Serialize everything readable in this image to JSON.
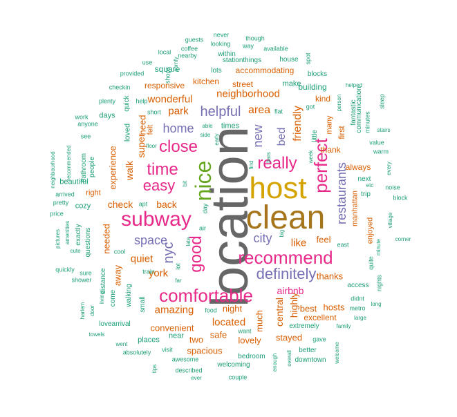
{
  "palette": {
    "gray": "#666666",
    "gold": "#d4a300",
    "olive": "#a6761d",
    "magenta": "#e7298a",
    "purple": "#7570b3",
    "green": "#66a61e",
    "orange": "#d95f02",
    "teal": "#1b9e77"
  },
  "words": [
    {
      "text": "location",
      "color": "gray",
      "size": 76,
      "rot": 1
    },
    {
      "text": "host",
      "color": "gold",
      "size": 44,
      "rot": 0
    },
    {
      "text": "clean",
      "color": "olive",
      "size": 48,
      "rot": 0
    },
    {
      "text": "nice",
      "color": "green",
      "size": 32,
      "rot": 1
    },
    {
      "text": "subway",
      "color": "magenta",
      "size": 30,
      "rot": 0
    },
    {
      "text": "comfortable",
      "color": "magenta",
      "size": 26,
      "rot": 0
    },
    {
      "text": "recommend",
      "color": "magenta",
      "size": 26,
      "rot": 0
    },
    {
      "text": "perfect",
      "color": "magenta",
      "size": 26,
      "rot": 1
    },
    {
      "text": "close",
      "color": "magenta",
      "size": 24,
      "rot": 0
    },
    {
      "text": "time",
      "color": "magenta",
      "size": 24,
      "rot": 0
    },
    {
      "text": "easy",
      "color": "magenta",
      "size": 22,
      "rot": 0
    },
    {
      "text": "really",
      "color": "magenta",
      "size": 24,
      "rot": 0
    },
    {
      "text": "good",
      "color": "magenta",
      "size": 24,
      "rot": 1
    },
    {
      "text": "definitely",
      "color": "purple",
      "size": 22,
      "rot": 0
    },
    {
      "text": "helpful",
      "color": "purple",
      "size": 20,
      "rot": 0
    },
    {
      "text": "home",
      "color": "purple",
      "size": 18,
      "rot": 0
    },
    {
      "text": "space",
      "color": "purple",
      "size": 18,
      "rot": 0
    },
    {
      "text": "nyc",
      "color": "purple",
      "size": 20,
      "rot": 1
    },
    {
      "text": "city",
      "color": "purple",
      "size": 18,
      "rot": 0
    },
    {
      "text": "new",
      "color": "purple",
      "size": 18,
      "rot": 1
    },
    {
      "text": "bed",
      "color": "purple",
      "size": 16,
      "rot": 1
    },
    {
      "text": "restaurants",
      "color": "purple",
      "size": 18,
      "rot": 1
    },
    {
      "text": "area",
      "color": "orange",
      "size": 16,
      "rot": 0
    },
    {
      "text": "friendly",
      "color": "orange",
      "size": 16,
      "rot": 1
    },
    {
      "text": "neighborhood",
      "color": "orange",
      "size": 15,
      "rot": 0
    },
    {
      "text": "wonderful",
      "color": "orange",
      "size": 15,
      "rot": 0
    },
    {
      "text": "park",
      "color": "orange",
      "size": 15,
      "rot": 0
    },
    {
      "text": "super",
      "color": "orange",
      "size": 14,
      "rot": 1
    },
    {
      "text": "need",
      "color": "orange",
      "size": 13,
      "rot": 1
    },
    {
      "text": "walk",
      "color": "orange",
      "size": 14,
      "rot": 1
    },
    {
      "text": "experience",
      "color": "orange",
      "size": 13,
      "rot": 1
    },
    {
      "text": "check",
      "color": "orange",
      "size": 14,
      "rot": 0
    },
    {
      "text": "back",
      "color": "orange",
      "size": 14,
      "rot": 0
    },
    {
      "text": "quiet",
      "color": "orange",
      "size": 15,
      "rot": 0
    },
    {
      "text": "york",
      "color": "orange",
      "size": 15,
      "rot": 0
    },
    {
      "text": "amazing",
      "color": "orange",
      "size": 15,
      "rot": 0
    },
    {
      "text": "like",
      "color": "orange",
      "size": 15,
      "rot": 0
    },
    {
      "text": "located",
      "color": "orange",
      "size": 15,
      "rot": 0
    },
    {
      "text": "central",
      "color": "orange",
      "size": 14,
      "rot": 1
    },
    {
      "text": "highly",
      "color": "orange",
      "size": 14,
      "rot": 1
    },
    {
      "text": "airbnb",
      "color": "magenta",
      "size": 14,
      "rot": 0
    },
    {
      "text": "night",
      "color": "orange",
      "size": 13,
      "rot": 0
    },
    {
      "text": "needed",
      "color": "orange",
      "size": 13,
      "rot": 1
    },
    {
      "text": "away",
      "color": "orange",
      "size": 13,
      "rot": 1
    },
    {
      "text": "feel",
      "color": "orange",
      "size": 13,
      "rot": 0
    },
    {
      "text": "thanks",
      "color": "orange",
      "size": 13,
      "rot": 0
    },
    {
      "text": "safe",
      "color": "orange",
      "size": 13,
      "rot": 0
    },
    {
      "text": "convenient",
      "color": "orange",
      "size": 13,
      "rot": 0
    },
    {
      "text": "stayed",
      "color": "orange",
      "size": 13,
      "rot": 0
    },
    {
      "text": "spacious",
      "color": "orange",
      "size": 13,
      "rot": 0
    },
    {
      "text": "two",
      "color": "orange",
      "size": 13,
      "rot": 0
    },
    {
      "text": "lovely",
      "color": "orange",
      "size": 13,
      "rot": 0
    },
    {
      "text": "much",
      "color": "orange",
      "size": 13,
      "rot": 1
    },
    {
      "text": "best",
      "color": "orange",
      "size": 13,
      "rot": 0
    },
    {
      "text": "hosts",
      "color": "orange",
      "size": 13,
      "rot": 0
    },
    {
      "text": "excellent",
      "color": "orange",
      "size": 12,
      "rot": 0
    },
    {
      "text": "first",
      "color": "orange",
      "size": 12,
      "rot": 1
    },
    {
      "text": "thank",
      "color": "orange",
      "size": 12,
      "rot": 0
    },
    {
      "text": "always",
      "color": "orange",
      "size": 12,
      "rot": 0
    },
    {
      "text": "manhattan",
      "color": "orange",
      "size": 11,
      "rot": 1
    },
    {
      "text": "enjoyed",
      "color": "orange",
      "size": 11,
      "rot": 1
    },
    {
      "text": "many",
      "color": "orange",
      "size": 11,
      "rot": 1
    },
    {
      "text": "kind",
      "color": "orange",
      "size": 12,
      "rot": 0
    },
    {
      "text": "building",
      "color": "teal",
      "size": 12,
      "rot": 0
    },
    {
      "text": "make",
      "color": "teal",
      "size": 11,
      "rot": 0
    },
    {
      "text": "street",
      "color": "orange",
      "size": 12,
      "rot": 0
    },
    {
      "text": "kitchen",
      "color": "orange",
      "size": 12,
      "rot": 0
    },
    {
      "text": "accommodating",
      "color": "orange",
      "size": 12,
      "rot": 0
    },
    {
      "text": "responsive",
      "color": "orange",
      "size": 12,
      "rot": 0
    },
    {
      "text": "square",
      "color": "teal",
      "size": 12,
      "rot": 0
    },
    {
      "text": "times",
      "color": "teal",
      "size": 11,
      "rot": 0
    },
    {
      "text": "loved",
      "color": "teal",
      "size": 11,
      "rot": 1
    },
    {
      "text": "quick",
      "color": "teal",
      "size": 10,
      "rot": 1
    },
    {
      "text": "felt",
      "color": "orange",
      "size": 11,
      "rot": 1
    },
    {
      "text": "days",
      "color": "teal",
      "size": 11,
      "rot": 0
    },
    {
      "text": "bathroom",
      "color": "teal",
      "size": 10,
      "rot": 1
    },
    {
      "text": "right",
      "color": "orange",
      "size": 11,
      "rot": 0
    },
    {
      "text": "beautiful",
      "color": "teal",
      "size": 11,
      "rot": 0
    },
    {
      "text": "people",
      "color": "teal",
      "size": 10,
      "rot": 1
    },
    {
      "text": "cozy",
      "color": "teal",
      "size": 11,
      "rot": 0
    },
    {
      "text": "exactly",
      "color": "teal",
      "size": 10,
      "rot": 1
    },
    {
      "text": "questions",
      "color": "teal",
      "size": 10,
      "rot": 1
    },
    {
      "text": "distance",
      "color": "teal",
      "size": 10,
      "rot": 1
    },
    {
      "text": "walking",
      "color": "teal",
      "size": 10,
      "rot": 1
    },
    {
      "text": "come",
      "color": "teal",
      "size": 10,
      "rot": 1
    },
    {
      "text": "small",
      "color": "teal",
      "size": 10,
      "rot": 1
    },
    {
      "text": "places",
      "color": "teal",
      "size": 11,
      "rot": 0
    },
    {
      "text": "near",
      "color": "teal",
      "size": 11,
      "rot": 0
    },
    {
      "text": "welcoming",
      "color": "teal",
      "size": 10,
      "rot": 0
    },
    {
      "text": "bedroom",
      "color": "teal",
      "size": 10,
      "rot": 0
    },
    {
      "text": "extremely",
      "color": "teal",
      "size": 10,
      "rot": 0
    },
    {
      "text": "better",
      "color": "teal",
      "size": 10,
      "rot": 0
    },
    {
      "text": "downtown",
      "color": "teal",
      "size": 10,
      "rot": 0
    },
    {
      "text": "communication",
      "color": "teal",
      "size": 10,
      "rot": 1
    },
    {
      "text": "fantastic",
      "color": "teal",
      "size": 10,
      "rot": 1
    },
    {
      "text": "minutes",
      "color": "teal",
      "size": 9,
      "rot": 1
    },
    {
      "text": "little",
      "color": "teal",
      "size": 10,
      "rot": 1
    },
    {
      "text": "stationthings",
      "color": "teal",
      "size": 10,
      "rot": 0
    },
    {
      "text": "lots",
      "color": "teal",
      "size": 10,
      "rot": 0
    },
    {
      "text": "blocks",
      "color": "teal",
      "size": 10,
      "rot": 0
    },
    {
      "text": "house",
      "color": "teal",
      "size": 10,
      "rot": 0
    },
    {
      "text": "available",
      "color": "teal",
      "size": 9,
      "rot": 0
    },
    {
      "text": "within",
      "color": "teal",
      "size": 10,
      "rot": 0
    },
    {
      "text": "looking",
      "color": "teal",
      "size": 9,
      "rot": 0
    },
    {
      "text": "coffee",
      "color": "teal",
      "size": 9,
      "rot": 0
    },
    {
      "text": "local",
      "color": "teal",
      "size": 9,
      "rot": 0
    },
    {
      "text": "guests",
      "color": "teal",
      "size": 9,
      "rot": 0
    },
    {
      "text": "never",
      "color": "teal",
      "size": 9,
      "rot": 0
    },
    {
      "text": "though",
      "color": "teal",
      "size": 9,
      "rot": 0
    },
    {
      "text": "way",
      "color": "teal",
      "size": 9,
      "rot": 0
    },
    {
      "text": "nearby",
      "color": "teal",
      "size": 9,
      "rot": 0
    },
    {
      "text": "shops",
      "color": "teal",
      "size": 9,
      "rot": 1
    },
    {
      "text": "use",
      "color": "teal",
      "size": 9,
      "rot": 0
    },
    {
      "text": "provided",
      "color": "teal",
      "size": 9,
      "rot": 0
    },
    {
      "text": "checkin",
      "color": "teal",
      "size": 9,
      "rot": 0
    },
    {
      "text": "help",
      "color": "teal",
      "size": 9,
      "rot": 0
    },
    {
      "text": "plenty",
      "color": "teal",
      "size": 9,
      "rot": 0
    },
    {
      "text": "short",
      "color": "teal",
      "size": 9,
      "rot": 0
    },
    {
      "text": "work",
      "color": "teal",
      "size": 9,
      "rot": 0
    },
    {
      "text": "anyone",
      "color": "teal",
      "size": 9,
      "rot": 0
    },
    {
      "text": "see",
      "color": "teal",
      "size": 9,
      "rot": 0
    },
    {
      "text": "floor",
      "color": "teal",
      "size": 8,
      "rot": 0
    },
    {
      "text": "comfy",
      "color": "teal",
      "size": 8,
      "rot": 1
    },
    {
      "text": "spot",
      "color": "teal",
      "size": 9,
      "rot": 1
    },
    {
      "text": "helped",
      "color": "teal",
      "size": 8,
      "rot": 0
    },
    {
      "text": "person",
      "color": "teal",
      "size": 8,
      "rot": 1
    },
    {
      "text": "sleep",
      "color": "teal",
      "size": 9,
      "rot": 1
    },
    {
      "text": "stairs",
      "color": "teal",
      "size": 8,
      "rot": 0
    },
    {
      "text": "value",
      "color": "teal",
      "size": 9,
      "rot": 0
    },
    {
      "text": "warm",
      "color": "teal",
      "size": 9,
      "rot": 0
    },
    {
      "text": "every",
      "color": "teal",
      "size": 8,
      "rot": 1
    },
    {
      "text": "noise",
      "color": "teal",
      "size": 9,
      "rot": 0
    },
    {
      "text": "block",
      "color": "teal",
      "size": 9,
      "rot": 0
    },
    {
      "text": "next",
      "color": "teal",
      "size": 10,
      "rot": 0
    },
    {
      "text": "etc",
      "color": "teal",
      "size": 8,
      "rot": 0
    },
    {
      "text": "trip",
      "color": "teal",
      "size": 10,
      "rot": 0
    },
    {
      "text": "village",
      "color": "teal",
      "size": 8,
      "rot": 1
    },
    {
      "text": "corner",
      "color": "teal",
      "size": 8,
      "rot": 0
    },
    {
      "text": "minute",
      "color": "teal",
      "size": 8,
      "rot": 1
    },
    {
      "text": "quite",
      "color": "teal",
      "size": 9,
      "rot": 1
    },
    {
      "text": "east",
      "color": "teal",
      "size": 9,
      "rot": 0
    },
    {
      "text": "access",
      "color": "teal",
      "size": 10,
      "rot": 0
    },
    {
      "text": "nights",
      "color": "teal",
      "size": 9,
      "rot": 1
    },
    {
      "text": "didnt",
      "color": "teal",
      "size": 9,
      "rot": 0
    },
    {
      "text": "metro",
      "color": "teal",
      "size": 9,
      "rot": 0
    },
    {
      "text": "long",
      "color": "teal",
      "size": 8,
      "rot": 0
    },
    {
      "text": "large",
      "color": "teal",
      "size": 8,
      "rot": 0
    },
    {
      "text": "family",
      "color": "teal",
      "size": 8,
      "rot": 0
    },
    {
      "text": "gave",
      "color": "teal",
      "size": 9,
      "rot": 0
    },
    {
      "text": "welcome",
      "color": "teal",
      "size": 8,
      "rot": 1
    },
    {
      "text": "enough",
      "color": "teal",
      "size": 8,
      "rot": 1
    },
    {
      "text": "overall",
      "color": "teal",
      "size": 8,
      "rot": 1
    },
    {
      "text": "couple",
      "color": "teal",
      "size": 9,
      "rot": 0
    },
    {
      "text": "described",
      "color": "teal",
      "size": 9,
      "rot": 0
    },
    {
      "text": "ever",
      "color": "teal",
      "size": 8,
      "rot": 0
    },
    {
      "text": "awesome",
      "color": "teal",
      "size": 9,
      "rot": 0
    },
    {
      "text": "visit",
      "color": "teal",
      "size": 9,
      "rot": 0
    },
    {
      "text": "tips",
      "color": "teal",
      "size": 8,
      "rot": 1
    },
    {
      "text": "absolutely",
      "color": "teal",
      "size": 9,
      "rot": 0
    },
    {
      "text": "went",
      "color": "teal",
      "size": 8,
      "rot": 0
    },
    {
      "text": "towels",
      "color": "teal",
      "size": 8,
      "rot": 0
    },
    {
      "text": "lovearrival",
      "color": "teal",
      "size": 10,
      "rot": 0
    },
    {
      "text": "harlem",
      "color": "teal",
      "size": 8,
      "rot": 1
    },
    {
      "text": "door",
      "color": "teal",
      "size": 8,
      "rot": 1
    },
    {
      "text": "living",
      "color": "teal",
      "size": 8,
      "rot": 1
    },
    {
      "text": "shower",
      "color": "teal",
      "size": 9,
      "rot": 0
    },
    {
      "text": "sure",
      "color": "teal",
      "size": 9,
      "rot": 0
    },
    {
      "text": "quickly",
      "color": "teal",
      "size": 9,
      "rot": 0
    },
    {
      "text": "cute",
      "color": "teal",
      "size": 8,
      "rot": 0
    },
    {
      "text": "pictures",
      "color": "teal",
      "size": 8,
      "rot": 1
    },
    {
      "text": "amenities",
      "color": "teal",
      "size": 8,
      "rot": 1
    },
    {
      "text": "price",
      "color": "teal",
      "size": 9,
      "rot": 0
    },
    {
      "text": "pretty",
      "color": "teal",
      "size": 9,
      "rot": 0
    },
    {
      "text": "arrived",
      "color": "teal",
      "size": 9,
      "rot": 0
    },
    {
      "text": "recommended",
      "color": "teal",
      "size": 8,
      "rot": 1
    },
    {
      "text": "neighbourhood",
      "color": "teal",
      "size": 8,
      "rot": 1
    },
    {
      "text": "apt",
      "color": "teal",
      "size": 9,
      "rot": 0
    },
    {
      "text": "bit",
      "color": "teal",
      "size": 8,
      "rot": 1
    },
    {
      "text": "day",
      "color": "teal",
      "size": 9,
      "rot": 1
    },
    {
      "text": "air",
      "color": "teal",
      "size": 9,
      "rot": 0
    },
    {
      "text": "late",
      "color": "teal",
      "size": 8,
      "rot": 1
    },
    {
      "text": "lot",
      "color": "teal",
      "size": 9,
      "rot": 1
    },
    {
      "text": "far",
      "color": "teal",
      "size": 8,
      "rot": 0
    },
    {
      "text": "train",
      "color": "teal",
      "size": 9,
      "rot": 0
    },
    {
      "text": "cool",
      "color": "teal",
      "size": 9,
      "rot": 0
    },
    {
      "text": "food",
      "color": "teal",
      "size": 9,
      "rot": 0
    },
    {
      "text": "want",
      "color": "teal",
      "size": 9,
      "rot": 0
    },
    {
      "text": "big",
      "color": "teal",
      "size": 8,
      "rot": 1
    },
    {
      "text": "find",
      "color": "teal",
      "size": 8,
      "rot": 1
    },
    {
      "text": "bars",
      "color": "teal",
      "size": 8,
      "rot": 1
    },
    {
      "text": "flat",
      "color": "teal",
      "size": 9,
      "rot": 0
    },
    {
      "text": "got",
      "color": "teal",
      "size": 9,
      "rot": 0
    },
    {
      "text": "week",
      "color": "teal",
      "size": 8,
      "rot": 1
    },
    {
      "text": "able",
      "color": "teal",
      "size": 8,
      "rot": 0
    },
    {
      "text": "side",
      "color": "teal",
      "size": 8,
      "rot": 0
    },
    {
      "text": "early",
      "color": "teal",
      "size": 8,
      "rot": 1
    }
  ]
}
